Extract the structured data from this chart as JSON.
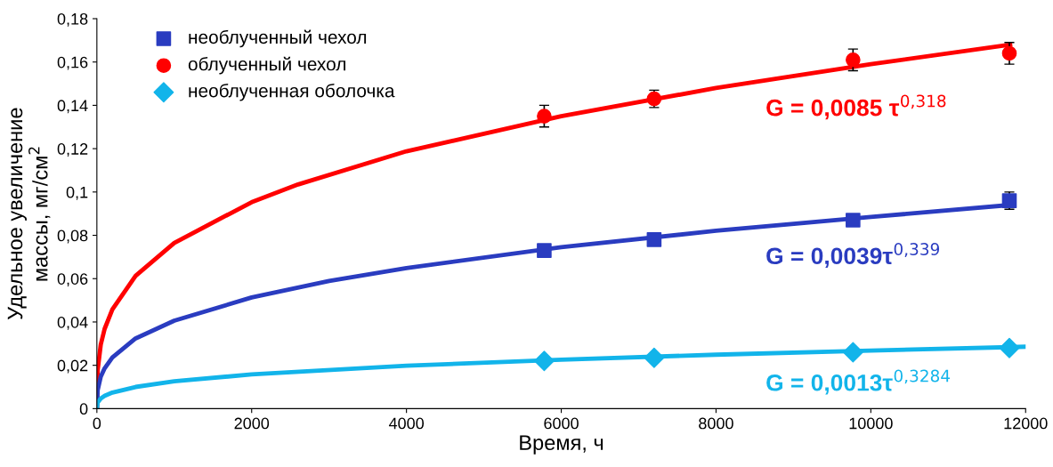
{
  "chart_data": {
    "type": "line",
    "xlabel": "Время, ч",
    "ylabel": "Удельное увеличение\nмассы, мг/см$^{2}$",
    "xlim": [
      0,
      12000
    ],
    "xticks": [
      0,
      2000,
      4000,
      6000,
      8000,
      10000,
      12000
    ],
    "ylim": [
      0,
      0.18
    ],
    "yticks": [
      {
        "value": 0,
        "label": "0"
      },
      {
        "value": 0.02,
        "label": "0,02"
      },
      {
        "value": 0.04,
        "label": "0,04"
      },
      {
        "value": 0.06,
        "label": "0,06"
      },
      {
        "value": 0.08,
        "label": "0,08"
      },
      {
        "value": 0.1,
        "label": "0,1"
      },
      {
        "value": 0.12,
        "label": "0,12"
      },
      {
        "value": 0.14,
        "label": "0,14"
      },
      {
        "value": 0.16,
        "label": "0,16"
      },
      {
        "value": 0.18,
        "label": "0,18"
      }
    ],
    "grid": false,
    "legend": "top left",
    "series": [
      {
        "color": "#ff0000",
        "marker": "none",
        "x": [
          0,
          10,
          50,
          100,
          200,
          500,
          1000,
          2000,
          2600,
          4000,
          6000,
          8000,
          10000,
          11800
        ],
        "values": [
          0,
          0.0177,
          0.0295,
          0.0368,
          0.0458,
          0.0613,
          0.0765,
          0.0953,
          0.1035,
          0.1188,
          0.135,
          0.148,
          0.159,
          0.168
        ]
      },
      {
        "color": "#2a3cc0",
        "marker": "none",
        "x": [
          0,
          10,
          50,
          100,
          200,
          500,
          1000,
          2000,
          3000,
          4000,
          6000,
          8000,
          10000,
          11800
        ],
        "values": [
          0,
          0.0085,
          0.0147,
          0.0186,
          0.0236,
          0.0324,
          0.0406,
          0.0513,
          0.0589,
          0.0649,
          0.0745,
          0.0821,
          0.0885,
          0.094
        ]
      },
      {
        "color": "#12b4ea",
        "marker": "none",
        "x": [
          0,
          10,
          50,
          100,
          200,
          500,
          1000,
          2000,
          4000,
          6000,
          8000,
          10000,
          11800,
          12000
        ],
        "values": [
          0,
          0.0028,
          0.0047,
          0.0059,
          0.0074,
          0.01,
          0.0126,
          0.0158,
          0.0198,
          0.0226,
          0.0249,
          0.0268,
          0.0284,
          0.0286
        ]
      },
      {
        "type": "scatter",
        "name": "необлученный чехол",
        "color": "#2a3cc0",
        "marker": "square",
        "x": [
          5780,
          7200,
          9770,
          11790
        ],
        "values": [
          0.073,
          0.078,
          0.087,
          0.096
        ],
        "errors": [
          null,
          null,
          null,
          0.004
        ]
      },
      {
        "type": "scatter",
        "name": "облученный чехол",
        "color": "#ff0000",
        "marker": "circle",
        "x": [
          5780,
          7200,
          9770,
          11790
        ],
        "values": [
          0.135,
          0.143,
          0.161,
          0.164
        ],
        "errors": [
          0.005,
          0.004,
          0.005,
          0.005
        ]
      },
      {
        "type": "scatter",
        "name": "необлученная оболочка",
        "color": "#12b4ea",
        "marker": "diamond",
        "x": [
          5780,
          7200,
          9770,
          11790
        ],
        "values": [
          0.022,
          0.0235,
          0.026,
          0.028
        ]
      }
    ],
    "annotations": [
      "G = 0,0085 τ$^{0,318}$",
      "G = 0,0039τ$^{0,339}$",
      "G = 0,0013τ$^{0,3284}$"
    ]
  }
}
